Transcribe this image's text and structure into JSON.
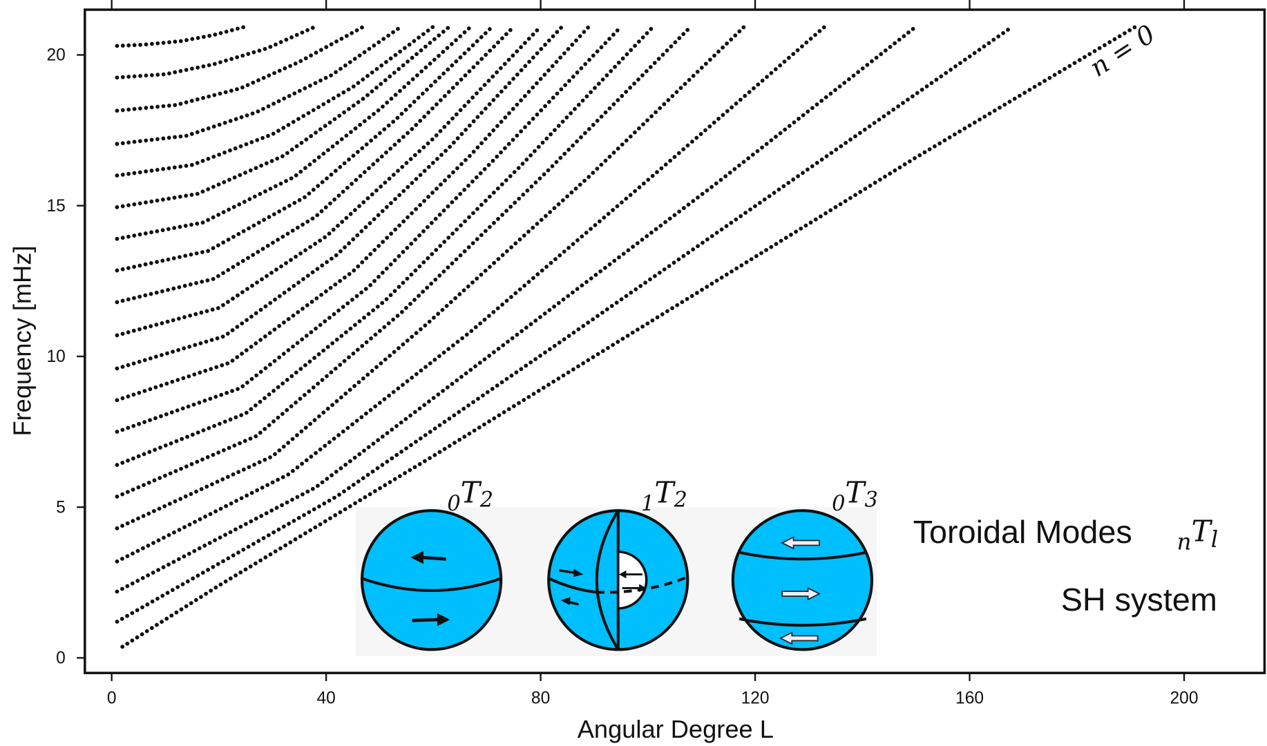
{
  "chart_data": {
    "type": "line",
    "xlabel": "Angular Degree L",
    "ylabel": "Frequency [mHz]",
    "xlim": [
      -5,
      215
    ],
    "ylim": [
      -0.5,
      21.5
    ],
    "xticks": [
      0,
      40,
      80,
      120,
      160,
      200
    ],
    "yticks": [
      0,
      5,
      10,
      15,
      20
    ],
    "color": "#111111",
    "series": [
      {
        "x": [
          2,
          20,
          60,
          100,
          150,
          191
        ],
        "values": [
          0.37,
          2.4,
          6.7,
          11.1,
          16.6,
          20.94
        ]
      },
      {
        "x": [
          1,
          42,
          84,
          126,
          168
        ],
        "values": [
          1.2,
          5.36,
          10.52,
          15.73,
          20.94
        ]
      },
      {
        "x": [
          1,
          38,
          75,
          113,
          150
        ],
        "values": [
          2.2,
          5.65,
          10.64,
          15.77,
          20.94
        ]
      },
      {
        "x": [
          1,
          33,
          67,
          100,
          133
        ],
        "values": [
          3.2,
          6.09,
          10.83,
          15.85,
          20.94
        ]
      },
      {
        "x": [
          1,
          30,
          59,
          89,
          118
        ],
        "values": [
          4.3,
          6.69,
          11.11,
          15.96,
          20.94
        ]
      },
      {
        "x": [
          1,
          27,
          54,
          81,
          108
        ],
        "values": [
          5.35,
          7.36,
          11.45,
          16.1,
          20.94
        ]
      },
      {
        "x": [
          1,
          25,
          51,
          76,
          101
        ],
        "values": [
          6.4,
          8.11,
          11.85,
          16.27,
          20.94
        ]
      },
      {
        "x": [
          1,
          24,
          48,
          71,
          95
        ],
        "values": [
          7.5,
          8.95,
          12.32,
          16.47,
          20.94
        ]
      },
      {
        "x": [
          1,
          22,
          45,
          67,
          89
        ],
        "values": [
          8.55,
          9.79,
          12.82,
          16.69,
          20.94
        ]
      },
      {
        "x": [
          1,
          21,
          42,
          63,
          84
        ],
        "values": [
          9.6,
          10.67,
          13.37,
          16.94,
          20.94
        ]
      },
      {
        "x": [
          1,
          20,
          40,
          60,
          80
        ],
        "values": [
          10.7,
          11.61,
          13.98,
          17.23,
          20.94
        ]
      },
      {
        "x": [
          1,
          19,
          38,
          56,
          75
        ],
        "values": [
          11.8,
          12.57,
          14.63,
          17.54,
          20.94
        ]
      },
      {
        "x": [
          1,
          18,
          36,
          53,
          71
        ],
        "values": [
          12.85,
          13.5,
          15.28,
          17.86,
          20.94
        ]
      },
      {
        "x": [
          1,
          17,
          34,
          50,
          67
        ],
        "values": [
          13.9,
          14.44,
          15.95,
          18.2,
          20.94
        ]
      },
      {
        "x": [
          1,
          16,
          32,
          47,
          63
        ],
        "values": [
          14.95,
          15.39,
          16.65,
          18.56,
          20.94
        ]
      },
      {
        "x": [
          1,
          15,
          30,
          45,
          60
        ],
        "values": [
          16.0,
          16.35,
          17.37,
          18.94,
          20.94
        ]
      },
      {
        "x": [
          1,
          14,
          27,
          41,
          54
        ],
        "values": [
          17.05,
          17.32,
          18.1,
          19.33,
          20.94
        ]
      },
      {
        "x": [
          1,
          12,
          24,
          35,
          47
        ],
        "values": [
          18.15,
          18.34,
          18.89,
          19.77,
          20.94
        ]
      },
      {
        "x": [
          1,
          10,
          19,
          29,
          38
        ],
        "values": [
          19.25,
          19.36,
          19.69,
          20.22,
          20.94
        ]
      },
      {
        "x": [
          1,
          6,
          13,
          19,
          25
        ],
        "values": [
          20.3,
          20.34,
          20.46,
          20.66,
          20.94
        ]
      }
    ],
    "annotations": {
      "branch_label": "n = 0",
      "title": "Toroidal Modes",
      "notation": {
        "pre": "n",
        "letter": "T",
        "post": "l"
      },
      "system": "SH system",
      "mode_labels": [
        {
          "pre": "0",
          "letter": "T",
          "post": "2"
        },
        {
          "pre": "1",
          "letter": "T",
          "post": "2"
        },
        {
          "pre": "0",
          "letter": "T",
          "post": "3"
        }
      ]
    }
  }
}
